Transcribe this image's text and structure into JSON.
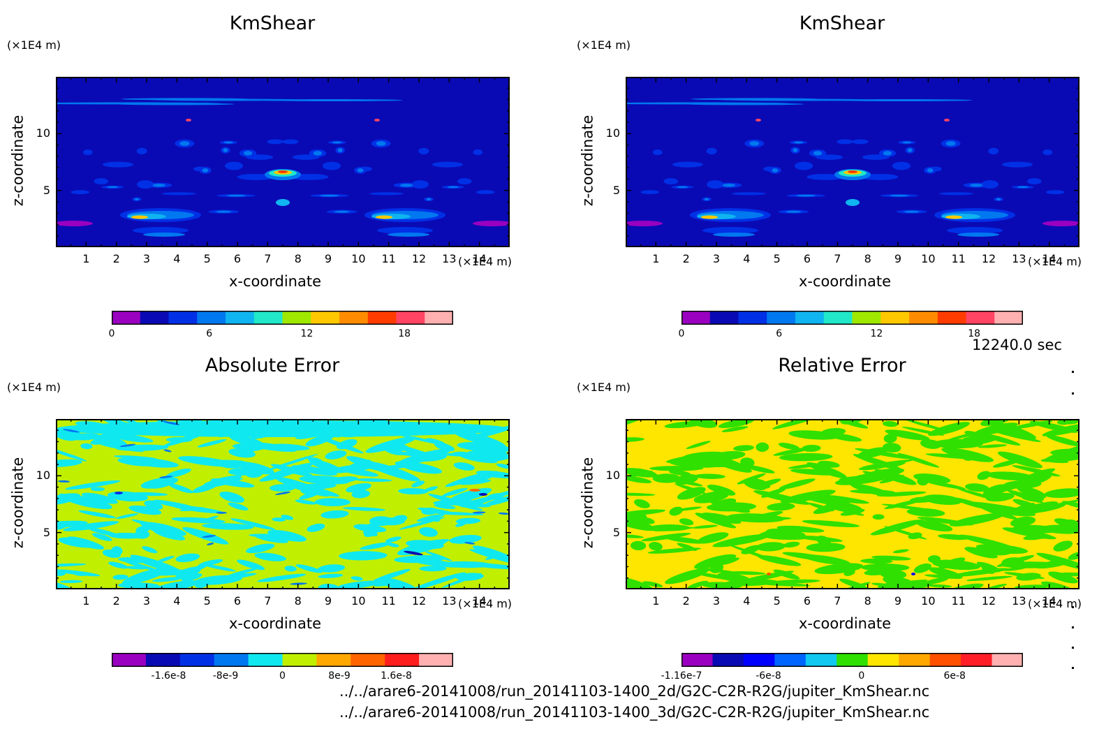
{
  "time_label": "12240.0 sec",
  "files": [
    "../../arare6-20141008/run_20141103-1400_2d/G2C-C2R-R2G/jupiter_KmShear.nc",
    "../../arare6-20141008/run_20141103-1400_3d/G2C-C2R-R2G/jupiter_KmShear.nc"
  ],
  "chart_data": [
    {
      "type": "heatmap",
      "title": "KmShear",
      "xlabel": "x-coordinate",
      "ylabel": "z-coordinate",
      "x_unit": "(×1E4 m)",
      "y_unit": "(×1E4 m)",
      "xlim": [
        0,
        15
      ],
      "ylim": [
        0,
        15
      ],
      "x_ticks": [
        "1",
        "2",
        "3",
        "4",
        "5",
        "6",
        "7",
        "8",
        "9",
        "10",
        "11",
        "12",
        "13",
        "14"
      ],
      "y_ticks": [
        "5",
        "10"
      ],
      "colors": [
        "#9a00c0",
        "#0a0ab4",
        "#0030e6",
        "#0078f0",
        "#10b4f0",
        "#20e8c8",
        "#a0e800",
        "#ffc800",
        "#ff8c00",
        "#ff3c00",
        "#ff4464",
        "#ffb0b0"
      ],
      "colorbar_labels": [
        "0",
        "6",
        "12",
        "18"
      ],
      "colorbar_range": [
        0,
        21
      ]
    },
    {
      "type": "heatmap",
      "title": "KmShear",
      "xlabel": "x-coordinate",
      "ylabel": "z-coordinate",
      "x_unit": "(×1E4 m)",
      "y_unit": "(×1E4 m)",
      "xlim": [
        0,
        15
      ],
      "ylim": [
        0,
        15
      ],
      "x_ticks": [
        "1",
        "2",
        "3",
        "4",
        "5",
        "6",
        "7",
        "8",
        "9",
        "10",
        "11",
        "12",
        "13",
        "14"
      ],
      "y_ticks": [
        "5",
        "10"
      ],
      "colors": [
        "#9a00c0",
        "#0a0ab4",
        "#0030e6",
        "#0078f0",
        "#10b4f0",
        "#20e8c8",
        "#a0e800",
        "#ffc800",
        "#ff8c00",
        "#ff3c00",
        "#ff4464",
        "#ffb0b0"
      ],
      "colorbar_labels": [
        "0",
        "6",
        "12",
        "18"
      ],
      "colorbar_range": [
        0,
        21
      ]
    },
    {
      "type": "heatmap",
      "title": "Absolute Error",
      "xlabel": "x-coordinate",
      "ylabel": "z-coordinate",
      "x_unit": "(×1E4 m)",
      "y_unit": "(×1E4 m)",
      "xlim": [
        0,
        15
      ],
      "ylim": [
        0,
        15
      ],
      "x_ticks": [
        "1",
        "2",
        "3",
        "4",
        "5",
        "6",
        "7",
        "8",
        "9",
        "10",
        "11",
        "12",
        "13",
        "14"
      ],
      "y_ticks": [
        "5",
        "10"
      ],
      "colors": [
        "#9a00c0",
        "#0a0ab4",
        "#0030e6",
        "#0078f0",
        "#10e8f0",
        "#c0f000",
        "#ffa800",
        "#ff6400",
        "#ff1e1e",
        "#ffb0b0"
      ],
      "colorbar_labels": [
        "-1.6e-8",
        "-8e-9",
        "0",
        "8e-9",
        "1.6e-8"
      ],
      "colorbar_range": [
        -2.4e-08,
        2.4e-08
      ]
    },
    {
      "type": "heatmap",
      "title": "Relative Error",
      "xlabel": "x-coordinate",
      "ylabel": "z-coordinate",
      "x_unit": "(×1E4 m)",
      "y_unit": "(×1E4 m)",
      "xlim": [
        0,
        15
      ],
      "ylim": [
        0,
        15
      ],
      "x_ticks": [
        "1",
        "2",
        "3",
        "4",
        "5",
        "6",
        "7",
        "8",
        "9",
        "10",
        "11",
        "12",
        "13",
        "14"
      ],
      "y_ticks": [
        "5",
        "10"
      ],
      "colors": [
        "#9a00c0",
        "#0a0ab4",
        "#0000ff",
        "#0064ff",
        "#10c8f0",
        "#30e000",
        "#ffe600",
        "#ffa800",
        "#ff5000",
        "#ff1e28",
        "#ffb0b0"
      ],
      "colorbar_labels": [
        "-1.16e-7",
        "-6e-8",
        "0",
        "6e-8"
      ],
      "colorbar_range": [
        -1.16e-07,
        1.04e-07
      ]
    }
  ]
}
